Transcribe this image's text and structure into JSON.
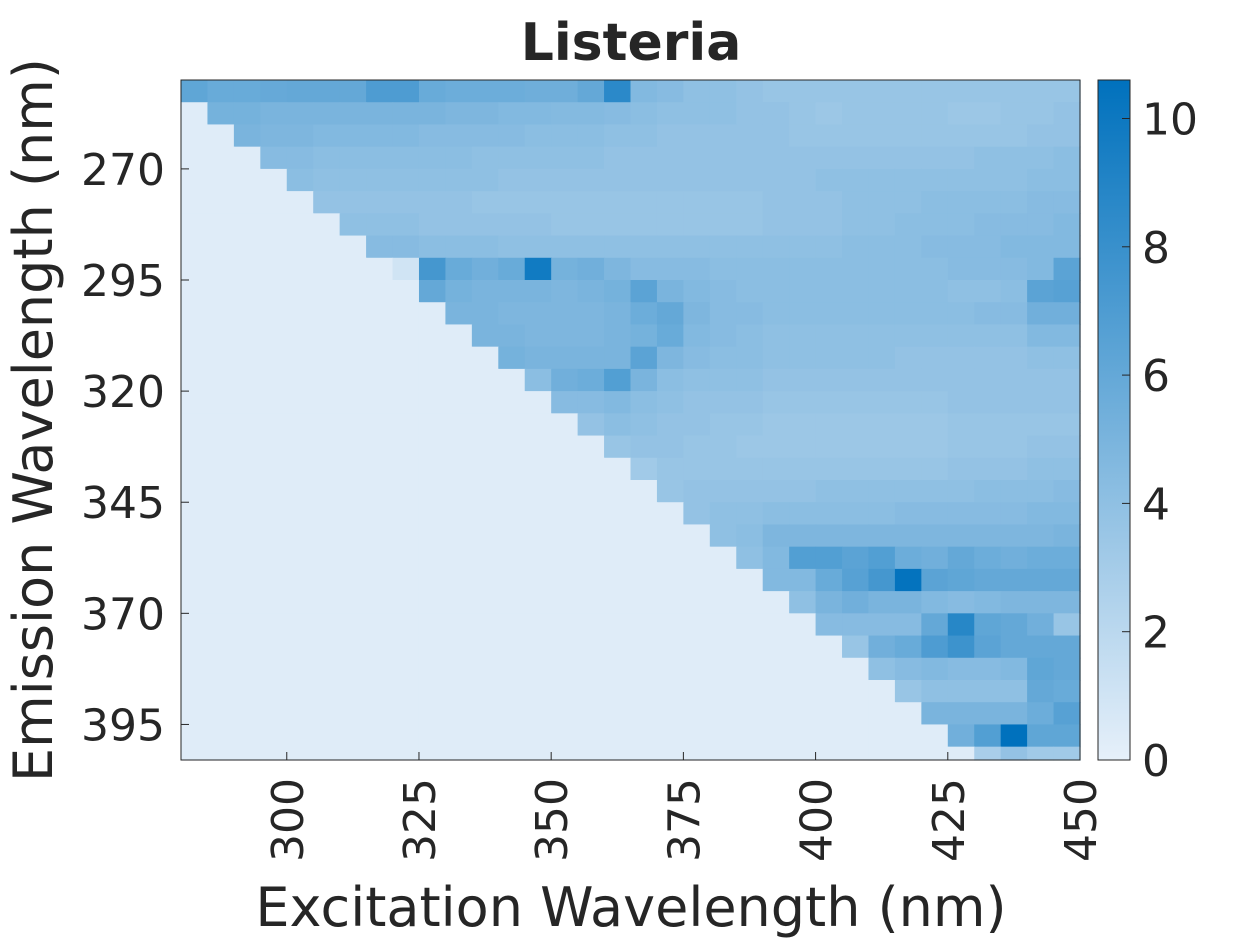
{
  "chart_data": {
    "type": "heatmap",
    "title": "Listeria",
    "xlabel": "Excitation Wavelength (nm)",
    "ylabel": "Emission Wavelength (nm)",
    "x_range": [
      280,
      450
    ],
    "y_range": [
      250,
      403
    ],
    "x_ticks": [
      "300",
      "325",
      "350",
      "375",
      "400",
      "425",
      "450"
    ],
    "y_ticks": [
      "270",
      "295",
      "320",
      "345",
      "370",
      "395"
    ],
    "colorbar": {
      "min": 0,
      "max": 10.6,
      "ticks": [
        "0",
        "2",
        "4",
        "6",
        "8",
        "10"
      ],
      "color_low": "#e6f0fa",
      "color_high": "#0071bd"
    },
    "grid": false,
    "x": [
      280,
      285,
      290,
      295,
      300,
      305,
      310,
      315,
      320,
      325,
      330,
      335,
      340,
      345,
      350,
      355,
      360,
      365,
      370,
      375,
      380,
      385,
      390,
      395,
      400,
      405,
      410,
      415,
      420,
      425,
      430,
      435,
      440,
      445,
      450
    ],
    "y": [
      250,
      255,
      260,
      265,
      270,
      275,
      280,
      285,
      290,
      295,
      300,
      305,
      310,
      315,
      320,
      325,
      330,
      335,
      340,
      345,
      350,
      355,
      360,
      365,
      370,
      375,
      380,
      385,
      390,
      395,
      400
    ],
    "values": [
      [
        6.2,
        5.8,
        5.8,
        5.9,
        6.0,
        6.0,
        6.0,
        7.0,
        7.0,
        5.8,
        5.6,
        5.6,
        5.6,
        5.5,
        5.5,
        6.0,
        8.6,
        4.6,
        4.4,
        4.0,
        4.0,
        3.8,
        3.6,
        3.6,
        3.6,
        3.6,
        3.6,
        3.6,
        3.6,
        3.6,
        3.6,
        3.6,
        3.6,
        3.6,
        3.6
      ],
      [
        0.3,
        5.2,
        5.2,
        5.0,
        5.0,
        5.0,
        5.0,
        5.0,
        5.0,
        5.0,
        4.8,
        4.8,
        4.6,
        4.6,
        4.5,
        4.5,
        4.4,
        4.2,
        4.0,
        4.0,
        4.0,
        3.8,
        3.8,
        3.6,
        3.4,
        3.6,
        3.6,
        3.6,
        3.6,
        3.4,
        3.4,
        3.6,
        3.6,
        3.8,
        4.0
      ],
      [
        0.3,
        0.3,
        5.0,
        4.8,
        4.8,
        4.6,
        4.6,
        4.6,
        4.6,
        4.4,
        4.4,
        4.4,
        4.4,
        4.2,
        4.2,
        4.2,
        4.0,
        4.0,
        3.8,
        3.8,
        3.8,
        3.8,
        3.8,
        3.6,
        3.6,
        3.6,
        3.6,
        3.6,
        3.6,
        3.6,
        3.6,
        3.6,
        3.8,
        3.8,
        4.0
      ],
      [
        0.3,
        0.3,
        0.3,
        4.4,
        4.4,
        4.2,
        4.2,
        4.2,
        4.2,
        4.2,
        4.2,
        4.0,
        4.0,
        4.0,
        4.0,
        4.0,
        3.8,
        3.8,
        3.8,
        3.8,
        3.8,
        3.8,
        3.8,
        3.8,
        3.8,
        3.8,
        3.8,
        3.8,
        3.8,
        3.8,
        4.0,
        4.0,
        4.0,
        4.2,
        4.4
      ],
      [
        0.3,
        0.3,
        0.3,
        0.3,
        4.2,
        4.0,
        4.0,
        4.0,
        4.0,
        4.0,
        4.0,
        4.0,
        3.8,
        3.8,
        3.8,
        3.8,
        3.8,
        3.8,
        3.8,
        3.8,
        3.8,
        3.8,
        3.8,
        3.8,
        4.0,
        4.0,
        4.0,
        4.0,
        4.0,
        4.0,
        4.0,
        4.0,
        4.2,
        4.2,
        4.4
      ],
      [
        0.3,
        0.3,
        0.3,
        0.3,
        0.3,
        3.8,
        3.8,
        3.8,
        3.8,
        3.8,
        3.8,
        3.6,
        3.6,
        3.6,
        3.6,
        3.6,
        3.6,
        3.6,
        3.6,
        3.6,
        3.6,
        3.6,
        3.8,
        3.8,
        3.8,
        4.0,
        4.0,
        4.0,
        4.2,
        4.2,
        4.2,
        4.2,
        4.4,
        4.4,
        4.6
      ],
      [
        0.3,
        0.3,
        0.3,
        0.3,
        0.3,
        0.3,
        4.0,
        4.0,
        4.0,
        3.8,
        3.8,
        3.8,
        3.8,
        3.8,
        3.6,
        3.6,
        3.6,
        3.6,
        3.6,
        3.6,
        3.6,
        3.6,
        3.8,
        3.8,
        3.8,
        4.0,
        4.0,
        4.2,
        4.2,
        4.2,
        4.4,
        4.4,
        4.4,
        4.6,
        4.6
      ],
      [
        0.3,
        0.3,
        0.3,
        0.3,
        0.3,
        0.3,
        0.3,
        4.4,
        4.4,
        4.2,
        4.2,
        4.2,
        4.0,
        4.0,
        4.0,
        4.0,
        4.0,
        4.0,
        4.0,
        4.0,
        4.0,
        4.0,
        4.0,
        4.0,
        4.0,
        4.2,
        4.2,
        4.2,
        4.4,
        4.4,
        4.4,
        4.6,
        4.6,
        4.6,
        4.8
      ],
      [
        0.3,
        0.3,
        0.3,
        0.3,
        0.3,
        0.3,
        0.3,
        0.3,
        1.0,
        7.4,
        5.8,
        5.4,
        5.8,
        9.8,
        5.2,
        5.4,
        4.8,
        4.4,
        4.4,
        4.4,
        4.2,
        4.2,
        4.2,
        4.2,
        4.2,
        4.2,
        4.2,
        4.2,
        4.2,
        4.4,
        4.4,
        4.4,
        4.6,
        6.4,
        6.4
      ],
      [
        0.3,
        0.3,
        0.3,
        0.3,
        0.3,
        0.3,
        0.3,
        0.3,
        0.3,
        6.0,
        5.2,
        5.0,
        5.0,
        5.0,
        4.8,
        5.0,
        5.2,
        6.4,
        5.0,
        4.6,
        4.4,
        4.2,
        4.2,
        4.2,
        4.2,
        4.2,
        4.2,
        4.2,
        4.2,
        4.0,
        4.0,
        4.2,
        6.4,
        6.6,
        6.6
      ],
      [
        0.3,
        0.3,
        0.3,
        0.3,
        0.3,
        0.3,
        0.3,
        0.3,
        0.3,
        0.3,
        5.0,
        5.0,
        4.8,
        4.8,
        4.8,
        4.8,
        5.0,
        5.6,
        6.0,
        4.8,
        4.4,
        4.4,
        4.2,
        4.2,
        4.2,
        4.2,
        4.2,
        4.2,
        4.2,
        4.2,
        4.4,
        4.4,
        5.4,
        5.4,
        5.8
      ],
      [
        0.3,
        0.3,
        0.3,
        0.3,
        0.3,
        0.3,
        0.3,
        0.3,
        0.3,
        0.3,
        0.3,
        5.0,
        5.0,
        4.8,
        4.8,
        4.8,
        5.0,
        5.2,
        5.8,
        4.6,
        4.4,
        4.2,
        4.0,
        4.0,
        4.0,
        4.0,
        4.0,
        4.0,
        4.0,
        4.0,
        4.0,
        4.0,
        4.6,
        4.6,
        4.8
      ],
      [
        0.3,
        0.3,
        0.3,
        0.3,
        0.3,
        0.3,
        0.3,
        0.3,
        0.3,
        0.3,
        0.3,
        0.3,
        5.2,
        5.0,
        5.0,
        5.0,
        5.0,
        6.4,
        4.8,
        4.4,
        4.2,
        4.2,
        4.0,
        4.0,
        4.0,
        4.0,
        4.0,
        3.8,
        3.8,
        3.8,
        3.8,
        3.8,
        4.0,
        4.0,
        4.0
      ],
      [
        0.3,
        0.3,
        0.3,
        0.3,
        0.3,
        0.3,
        0.3,
        0.3,
        0.3,
        0.3,
        0.3,
        0.3,
        0.3,
        4.2,
        5.4,
        5.6,
        6.8,
        5.0,
        4.2,
        4.0,
        4.0,
        4.0,
        3.8,
        3.8,
        3.8,
        3.8,
        3.8,
        3.8,
        3.8,
        3.8,
        3.8,
        3.8,
        3.8,
        3.8,
        4.0
      ],
      [
        0.3,
        0.3,
        0.3,
        0.3,
        0.3,
        0.3,
        0.3,
        0.3,
        0.3,
        0.3,
        0.3,
        0.3,
        0.3,
        0.3,
        4.4,
        4.4,
        4.6,
        4.2,
        4.0,
        3.8,
        3.8,
        3.8,
        3.6,
        3.6,
        3.6,
        3.6,
        3.6,
        3.6,
        3.6,
        3.8,
        3.8,
        3.8,
        3.8,
        3.8,
        4.0
      ],
      [
        0.3,
        0.3,
        0.3,
        0.3,
        0.3,
        0.3,
        0.3,
        0.3,
        0.3,
        0.3,
        0.3,
        0.3,
        0.3,
        0.3,
        0.3,
        3.8,
        4.2,
        4.0,
        3.8,
        3.8,
        3.6,
        3.6,
        3.4,
        3.4,
        3.4,
        3.4,
        3.4,
        3.4,
        3.4,
        3.6,
        3.6,
        3.6,
        3.6,
        3.6,
        3.8
      ],
      [
        0.3,
        0.3,
        0.3,
        0.3,
        0.3,
        0.3,
        0.3,
        0.3,
        0.3,
        0.3,
        0.3,
        0.3,
        0.3,
        0.3,
        0.3,
        0.3,
        3.6,
        3.8,
        3.8,
        3.6,
        3.6,
        3.4,
        3.4,
        3.4,
        3.4,
        3.4,
        3.4,
        3.4,
        3.4,
        3.6,
        3.6,
        3.6,
        3.8,
        3.8,
        4.0
      ],
      [
        0.3,
        0.3,
        0.3,
        0.3,
        0.3,
        0.3,
        0.3,
        0.3,
        0.3,
        0.3,
        0.3,
        0.3,
        0.3,
        0.3,
        0.3,
        0.3,
        0.3,
        3.2,
        3.6,
        3.6,
        3.6,
        3.6,
        3.6,
        3.6,
        3.6,
        3.6,
        3.6,
        3.6,
        3.6,
        3.8,
        3.8,
        3.8,
        4.0,
        4.0,
        4.2
      ],
      [
        0.3,
        0.3,
        0.3,
        0.3,
        0.3,
        0.3,
        0.3,
        0.3,
        0.3,
        0.3,
        0.3,
        0.3,
        0.3,
        0.3,
        0.3,
        0.3,
        0.3,
        0.3,
        3.6,
        3.8,
        3.8,
        3.8,
        3.8,
        3.8,
        4.0,
        4.0,
        4.0,
        4.0,
        4.0,
        4.0,
        4.2,
        4.2,
        4.2,
        4.4,
        4.4
      ],
      [
        0.3,
        0.3,
        0.3,
        0.3,
        0.3,
        0.3,
        0.3,
        0.3,
        0.3,
        0.3,
        0.3,
        0.3,
        0.3,
        0.3,
        0.3,
        0.3,
        0.3,
        0.3,
        0.3,
        3.8,
        4.0,
        4.0,
        4.2,
        4.2,
        4.2,
        4.2,
        4.2,
        4.4,
        4.4,
        4.4,
        4.4,
        4.4,
        4.6,
        4.6,
        4.8
      ],
      [
        0.3,
        0.3,
        0.3,
        0.3,
        0.3,
        0.3,
        0.3,
        0.3,
        0.3,
        0.3,
        0.3,
        0.3,
        0.3,
        0.3,
        0.3,
        0.3,
        0.3,
        0.3,
        0.3,
        0.3,
        4.0,
        4.2,
        4.8,
        4.8,
        4.8,
        4.8,
        4.8,
        4.8,
        4.8,
        4.8,
        4.8,
        4.8,
        4.8,
        5.0,
        5.2
      ],
      [
        0.3,
        0.3,
        0.3,
        0.3,
        0.3,
        0.3,
        0.3,
        0.3,
        0.3,
        0.3,
        0.3,
        0.3,
        0.3,
        0.3,
        0.3,
        0.3,
        0.3,
        0.3,
        0.3,
        0.3,
        0.3,
        4.0,
        4.6,
        6.8,
        6.8,
        6.4,
        6.8,
        5.6,
        5.4,
        6.0,
        5.6,
        5.4,
        5.6,
        5.6,
        5.8
      ],
      [
        0.3,
        0.3,
        0.3,
        0.3,
        0.3,
        0.3,
        0.3,
        0.3,
        0.3,
        0.3,
        0.3,
        0.3,
        0.3,
        0.3,
        0.3,
        0.3,
        0.3,
        0.3,
        0.3,
        0.3,
        0.3,
        0.3,
        4.6,
        4.6,
        5.8,
        6.6,
        7.4,
        10.4,
        6.4,
        6.2,
        6.0,
        6.0,
        6.0,
        6.0,
        6.6
      ],
      [
        0.3,
        0.3,
        0.3,
        0.3,
        0.3,
        0.3,
        0.3,
        0.3,
        0.3,
        0.3,
        0.3,
        0.3,
        0.3,
        0.3,
        0.3,
        0.3,
        0.3,
        0.3,
        0.3,
        0.3,
        0.3,
        0.3,
        0.3,
        4.0,
        5.0,
        5.4,
        5.0,
        5.0,
        4.6,
        4.4,
        4.6,
        4.8,
        4.8,
        4.8,
        5.6
      ],
      [
        0.3,
        0.3,
        0.3,
        0.3,
        0.3,
        0.3,
        0.3,
        0.3,
        0.3,
        0.3,
        0.3,
        0.3,
        0.3,
        0.3,
        0.3,
        0.3,
        0.3,
        0.3,
        0.3,
        0.3,
        0.3,
        0.3,
        0.3,
        0.3,
        4.4,
        4.4,
        4.4,
        4.4,
        6.0,
        8.8,
        6.2,
        6.0,
        5.4,
        3.6,
        3.6
      ],
      [
        0.3,
        0.3,
        0.3,
        0.3,
        0.3,
        0.3,
        0.3,
        0.3,
        0.3,
        0.3,
        0.3,
        0.3,
        0.3,
        0.3,
        0.3,
        0.3,
        0.3,
        0.3,
        0.3,
        0.3,
        0.3,
        0.3,
        0.3,
        0.3,
        0.3,
        3.6,
        5.4,
        5.8,
        7.0,
        7.8,
        6.4,
        6.0,
        6.0,
        6.0,
        3.8
      ],
      [
        0.3,
        0.3,
        0.3,
        0.3,
        0.3,
        0.3,
        0.3,
        0.3,
        0.3,
        0.3,
        0.3,
        0.3,
        0.3,
        0.3,
        0.3,
        0.3,
        0.3,
        0.3,
        0.3,
        0.3,
        0.3,
        0.3,
        0.3,
        0.3,
        0.3,
        0.3,
        4.0,
        4.4,
        4.6,
        4.4,
        4.4,
        4.6,
        6.2,
        6.0,
        4.0
      ],
      [
        0.3,
        0.3,
        0.3,
        0.3,
        0.3,
        0.3,
        0.3,
        0.3,
        0.3,
        0.3,
        0.3,
        0.3,
        0.3,
        0.3,
        0.3,
        0.3,
        0.3,
        0.3,
        0.3,
        0.3,
        0.3,
        0.3,
        0.3,
        0.3,
        0.3,
        0.3,
        0.3,
        3.6,
        4.0,
        4.0,
        4.0,
        4.0,
        6.0,
        5.8,
        4.0
      ],
      [
        0.3,
        0.3,
        0.3,
        0.3,
        0.3,
        0.3,
        0.3,
        0.3,
        0.3,
        0.3,
        0.3,
        0.3,
        0.3,
        0.3,
        0.3,
        0.3,
        0.3,
        0.3,
        0.3,
        0.3,
        0.3,
        0.3,
        0.3,
        0.3,
        0.3,
        0.3,
        0.3,
        0.3,
        5.0,
        5.0,
        5.0,
        5.0,
        5.6,
        6.6,
        4.2
      ],
      [
        0.3,
        0.3,
        0.3,
        0.3,
        0.3,
        0.3,
        0.3,
        0.3,
        0.3,
        0.3,
        0.3,
        0.3,
        0.3,
        0.3,
        0.3,
        0.3,
        0.3,
        0.3,
        0.3,
        0.3,
        0.3,
        0.3,
        0.3,
        0.3,
        0.3,
        0.3,
        0.3,
        0.3,
        0.3,
        5.4,
        6.8,
        10.6,
        6.2,
        6.2,
        6.6
      ],
      [
        0.3,
        0.3,
        0.3,
        0.3,
        0.3,
        0.3,
        0.3,
        0.3,
        0.3,
        0.3,
        0.3,
        0.3,
        0.3,
        0.3,
        0.3,
        0.3,
        0.3,
        0.3,
        0.3,
        0.3,
        0.3,
        0.3,
        0.3,
        0.3,
        0.3,
        0.3,
        0.3,
        0.3,
        0.3,
        0.3,
        2.8,
        3.8,
        3.2,
        3.2,
        3.4
      ]
    ]
  }
}
